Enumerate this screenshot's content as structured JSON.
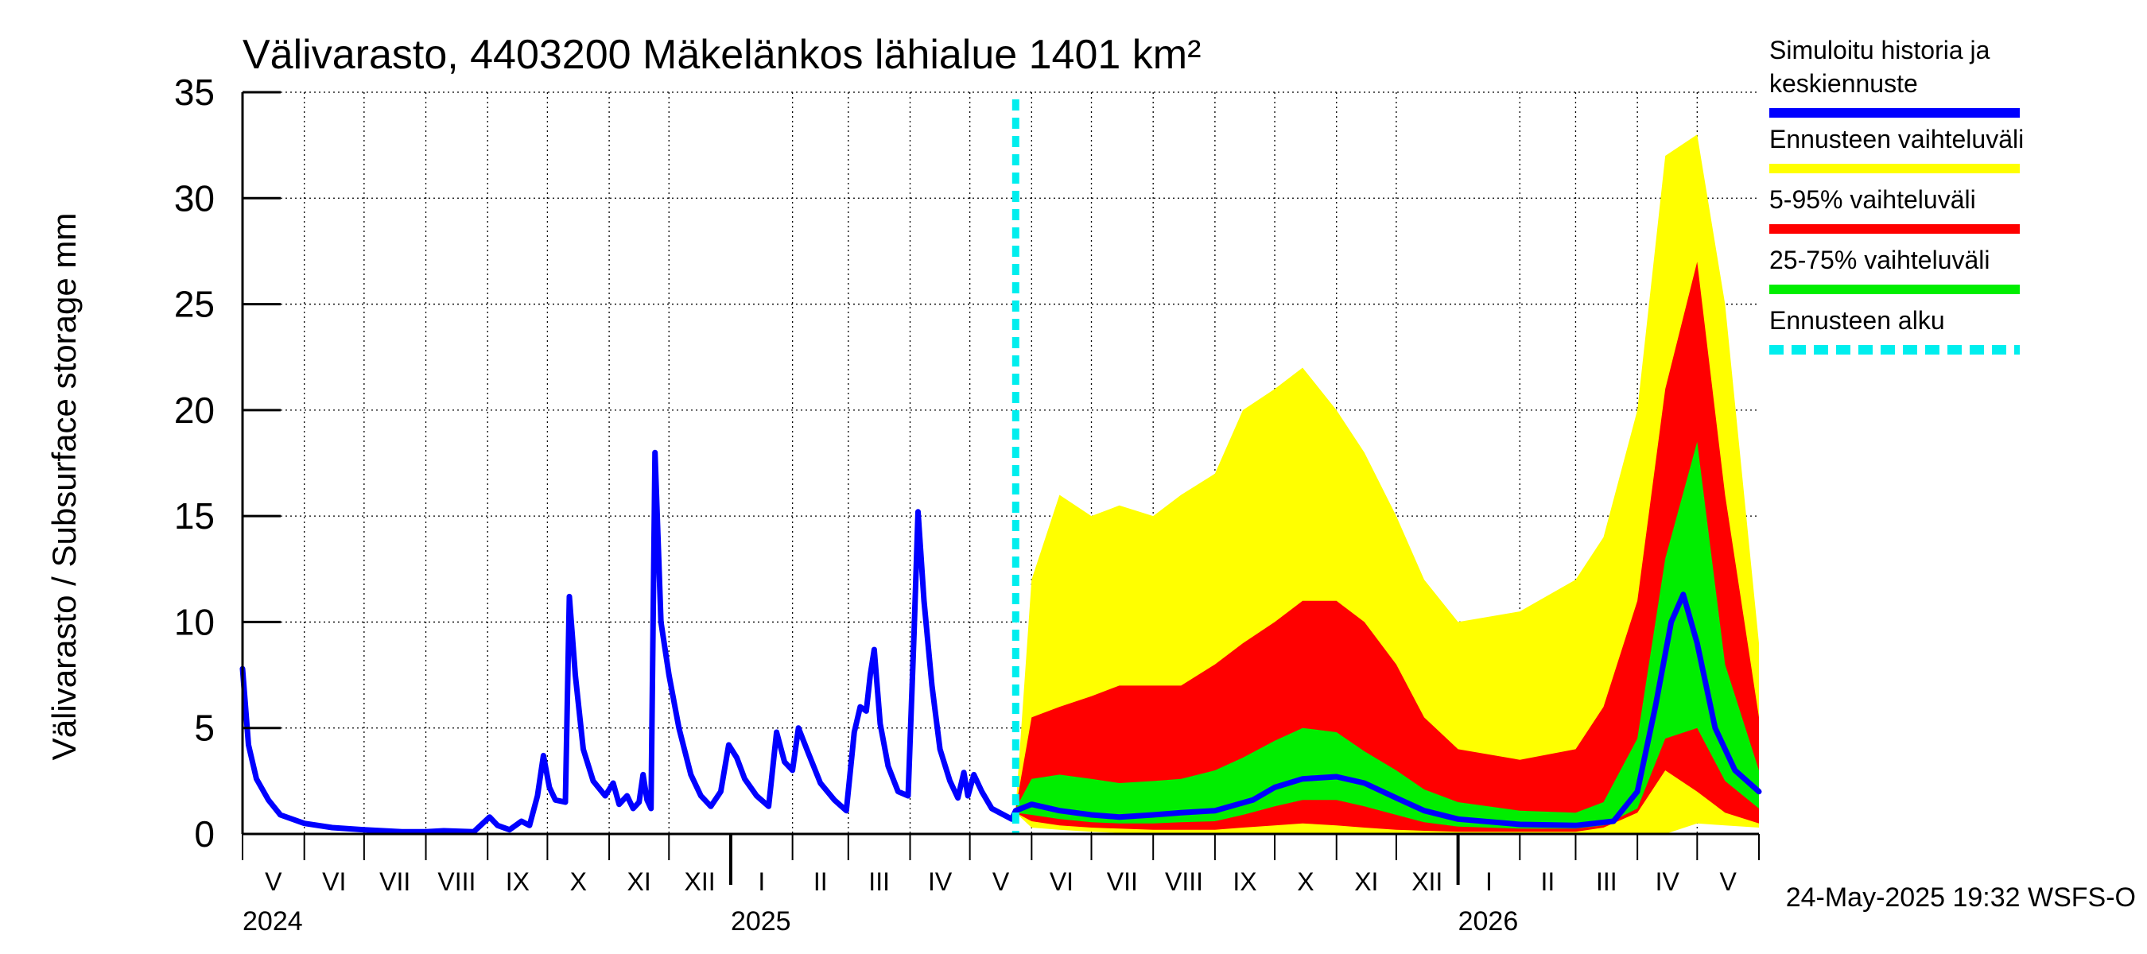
{
  "chart_data": {
    "type": "area",
    "title": "Välivarasto, 4403200 Mäkelänkos lähialue 1401 km²",
    "ylabel": "Välivarasto / Subsurface storage  mm",
    "ylim": [
      0,
      35
    ],
    "yticks": [
      0,
      5,
      10,
      15,
      20,
      25,
      30,
      35
    ],
    "xlim": [
      "2024-05-01",
      "2026-06-01"
    ],
    "grid": true,
    "forecast_start": "2025-05-24",
    "month_labels": [
      {
        "label": "V",
        "start": "2024-05-01",
        "end": "2024-06-01"
      },
      {
        "label": "VI",
        "start": "2024-06-01",
        "end": "2024-07-01"
      },
      {
        "label": "VII",
        "start": "2024-07-01",
        "end": "2024-08-01"
      },
      {
        "label": "VIII",
        "start": "2024-08-01",
        "end": "2024-09-01"
      },
      {
        "label": "IX",
        "start": "2024-09-01",
        "end": "2024-10-01"
      },
      {
        "label": "X",
        "start": "2024-10-01",
        "end": "2024-11-01"
      },
      {
        "label": "XI",
        "start": "2024-11-01",
        "end": "2024-12-01"
      },
      {
        "label": "XII",
        "start": "2024-12-01",
        "end": "2025-01-01"
      },
      {
        "label": "I",
        "start": "2025-01-01",
        "end": "2025-02-01"
      },
      {
        "label": "II",
        "start": "2025-02-01",
        "end": "2025-03-01"
      },
      {
        "label": "III",
        "start": "2025-03-01",
        "end": "2025-04-01"
      },
      {
        "label": "IV",
        "start": "2025-04-01",
        "end": "2025-05-01"
      },
      {
        "label": "V",
        "start": "2025-05-01",
        "end": "2025-06-01"
      },
      {
        "label": "VI",
        "start": "2025-06-01",
        "end": "2025-07-01"
      },
      {
        "label": "VII",
        "start": "2025-07-01",
        "end": "2025-08-01"
      },
      {
        "label": "VIII",
        "start": "2025-08-01",
        "end": "2025-09-01"
      },
      {
        "label": "IX",
        "start": "2025-09-01",
        "end": "2025-10-01"
      },
      {
        "label": "X",
        "start": "2025-10-01",
        "end": "2025-11-01"
      },
      {
        "label": "XI",
        "start": "2025-11-01",
        "end": "2025-12-01"
      },
      {
        "label": "XII",
        "start": "2025-12-01",
        "end": "2026-01-01"
      },
      {
        "label": "I",
        "start": "2026-01-01",
        "end": "2026-02-01"
      },
      {
        "label": "II",
        "start": "2026-02-01",
        "end": "2026-03-01"
      },
      {
        "label": "III",
        "start": "2026-03-01",
        "end": "2026-04-01"
      },
      {
        "label": "IV",
        "start": "2026-04-01",
        "end": "2026-05-01"
      },
      {
        "label": "V",
        "start": "2026-05-01",
        "end": "2026-06-01"
      }
    ],
    "year_labels": [
      {
        "label": "2024",
        "date": "2024-05-01"
      },
      {
        "label": "2025",
        "date": "2025-01-01"
      },
      {
        "label": "2026",
        "date": "2026-01-01"
      }
    ],
    "legend_position": "right",
    "legend": [
      {
        "text": [
          "Simuloitu historia ja",
          "keskiennuste"
        ],
        "color": "#0000ff",
        "style": "solid"
      },
      {
        "text": [
          "Ennusteen vaihteluväli"
        ],
        "color": "#ffff00",
        "style": "solid"
      },
      {
        "text": [
          "5-95% vaihteluväli"
        ],
        "color": "#ff0000",
        "style": "solid"
      },
      {
        "text": [
          "25-75% vaihteluväli"
        ],
        "color": "#00ee00",
        "style": "solid"
      },
      {
        "text": [
          "Ennusteen alku"
        ],
        "color": "#00eeee",
        "style": "dashed"
      }
    ],
    "footer": "24-May-2025 19:32 WSFS-O",
    "series": [
      {
        "role": "history",
        "color": "#0000ff",
        "points": [
          [
            "2024-05-01",
            7.8
          ],
          [
            "2024-05-04",
            4.2
          ],
          [
            "2024-05-08",
            2.6
          ],
          [
            "2024-05-14",
            1.6
          ],
          [
            "2024-05-20",
            0.9
          ],
          [
            "2024-06-01",
            0.5
          ],
          [
            "2024-06-15",
            0.3
          ],
          [
            "2024-07-01",
            0.2
          ],
          [
            "2024-07-20",
            0.1
          ],
          [
            "2024-08-01",
            0.1
          ],
          [
            "2024-08-10",
            0.15
          ],
          [
            "2024-08-25",
            0.1
          ],
          [
            "2024-09-02",
            0.8
          ],
          [
            "2024-09-06",
            0.4
          ],
          [
            "2024-09-12",
            0.2
          ],
          [
            "2024-09-18",
            0.6
          ],
          [
            "2024-09-22",
            0.4
          ],
          [
            "2024-09-26",
            1.8
          ],
          [
            "2024-09-29",
            3.7
          ],
          [
            "2024-10-02",
            2.2
          ],
          [
            "2024-10-05",
            1.6
          ],
          [
            "2024-10-10",
            1.5
          ],
          [
            "2024-10-12",
            11.2
          ],
          [
            "2024-10-15",
            7.5
          ],
          [
            "2024-10-19",
            4.0
          ],
          [
            "2024-10-24",
            2.5
          ],
          [
            "2024-10-30",
            1.8
          ],
          [
            "2024-11-03",
            2.4
          ],
          [
            "2024-11-06",
            1.4
          ],
          [
            "2024-11-10",
            1.8
          ],
          [
            "2024-11-13",
            1.2
          ],
          [
            "2024-11-16",
            1.5
          ],
          [
            "2024-11-18",
            2.8
          ],
          [
            "2024-11-20",
            1.6
          ],
          [
            "2024-11-22",
            1.2
          ],
          [
            "2024-11-24",
            18.0
          ],
          [
            "2024-11-27",
            10.0
          ],
          [
            "2024-12-01",
            7.5
          ],
          [
            "2024-12-06",
            5.0
          ],
          [
            "2024-12-12",
            2.8
          ],
          [
            "2024-12-17",
            1.8
          ],
          [
            "2024-12-22",
            1.3
          ],
          [
            "2024-12-27",
            2.0
          ],
          [
            "2024-12-31",
            4.2
          ],
          [
            "2025-01-04",
            3.6
          ],
          [
            "2025-01-08",
            2.6
          ],
          [
            "2025-01-14",
            1.8
          ],
          [
            "2025-01-20",
            1.3
          ],
          [
            "2025-01-24",
            4.8
          ],
          [
            "2025-01-28",
            3.4
          ],
          [
            "2025-02-01",
            3.0
          ],
          [
            "2025-02-04",
            5.0
          ],
          [
            "2025-02-09",
            3.8
          ],
          [
            "2025-02-15",
            2.4
          ],
          [
            "2025-02-22",
            1.6
          ],
          [
            "2025-02-28",
            1.1
          ],
          [
            "2025-03-04",
            4.8
          ],
          [
            "2025-03-07",
            6.0
          ],
          [
            "2025-03-10",
            5.8
          ],
          [
            "2025-03-12",
            7.5
          ],
          [
            "2025-03-14",
            8.7
          ],
          [
            "2025-03-17",
            5.2
          ],
          [
            "2025-03-21",
            3.2
          ],
          [
            "2025-03-26",
            2.0
          ],
          [
            "2025-03-31",
            1.8
          ],
          [
            "2025-04-03",
            9.5
          ],
          [
            "2025-04-05",
            15.2
          ],
          [
            "2025-04-08",
            11.0
          ],
          [
            "2025-04-12",
            7.0
          ],
          [
            "2025-04-16",
            4.0
          ],
          [
            "2025-04-21",
            2.5
          ],
          [
            "2025-04-25",
            1.7
          ],
          [
            "2025-04-28",
            2.9
          ],
          [
            "2025-04-30",
            1.8
          ],
          [
            "2025-05-03",
            2.8
          ],
          [
            "2025-05-07",
            2.0
          ],
          [
            "2025-05-12",
            1.2
          ],
          [
            "2025-05-18",
            0.9
          ],
          [
            "2025-05-22",
            0.7
          ],
          [
            "2025-05-24",
            1.1
          ]
        ]
      },
      {
        "role": "forecast-mean",
        "color": "#0000ff",
        "points": [
          [
            "2025-05-24",
            1.1
          ],
          [
            "2025-06-01",
            1.4
          ],
          [
            "2025-06-15",
            1.1
          ],
          [
            "2025-07-01",
            0.9
          ],
          [
            "2025-07-15",
            0.8
          ],
          [
            "2025-08-01",
            0.9
          ],
          [
            "2025-08-15",
            1.0
          ],
          [
            "2025-09-01",
            1.1
          ],
          [
            "2025-09-20",
            1.6
          ],
          [
            "2025-10-01",
            2.2
          ],
          [
            "2025-10-15",
            2.6
          ],
          [
            "2025-11-01",
            2.7
          ],
          [
            "2025-11-15",
            2.4
          ],
          [
            "2025-12-01",
            1.7
          ],
          [
            "2025-12-15",
            1.1
          ],
          [
            "2026-01-01",
            0.7
          ],
          [
            "2026-02-01",
            0.45
          ],
          [
            "2026-03-01",
            0.4
          ],
          [
            "2026-03-20",
            0.6
          ],
          [
            "2026-04-01",
            2.0
          ],
          [
            "2026-04-10",
            6.0
          ],
          [
            "2026-04-18",
            10.0
          ],
          [
            "2026-04-24",
            11.3
          ],
          [
            "2026-05-01",
            9.0
          ],
          [
            "2026-05-10",
            5.0
          ],
          [
            "2026-05-20",
            3.0
          ],
          [
            "2026-06-01",
            2.0
          ]
        ]
      },
      {
        "role": "forecast-range",
        "name": "Ennusteen vaihteluväli",
        "color": "#ffff00",
        "points": [
          [
            "2025-05-24",
            1.0,
            1.2
          ],
          [
            "2025-06-01",
            0.3,
            12.0
          ],
          [
            "2025-06-15",
            0.2,
            16.0
          ],
          [
            "2025-07-01",
            0.1,
            15.0
          ],
          [
            "2025-07-15",
            0.05,
            15.5
          ],
          [
            "2025-08-01",
            0.05,
            15.0
          ],
          [
            "2025-08-15",
            0.0,
            16.0
          ],
          [
            "2025-09-01",
            0.0,
            17.0
          ],
          [
            "2025-09-15",
            0.0,
            20.0
          ],
          [
            "2025-10-01",
            0.0,
            21.0
          ],
          [
            "2025-10-15",
            0.0,
            22.0
          ],
          [
            "2025-11-01",
            0.0,
            20.0
          ],
          [
            "2025-11-15",
            0.0,
            18.0
          ],
          [
            "2025-12-01",
            0.0,
            15.0
          ],
          [
            "2025-12-15",
            0.0,
            12.0
          ],
          [
            "2026-01-01",
            0.0,
            10.0
          ],
          [
            "2026-02-01",
            0.0,
            10.5
          ],
          [
            "2026-03-01",
            0.0,
            12.0
          ],
          [
            "2026-03-15",
            0.0,
            14.0
          ],
          [
            "2026-04-01",
            0.0,
            20.0
          ],
          [
            "2026-04-15",
            0.0,
            32.0
          ],
          [
            "2026-05-01",
            0.5,
            33.0
          ],
          [
            "2026-05-15",
            0.4,
            25.0
          ],
          [
            "2026-06-01",
            0.3,
            9.0
          ]
        ]
      },
      {
        "role": "forecast-range",
        "name": "5-95% vaihteluväli",
        "color": "#ff0000",
        "points": [
          [
            "2025-05-24",
            1.0,
            1.2
          ],
          [
            "2025-06-01",
            0.6,
            5.5
          ],
          [
            "2025-06-15",
            0.4,
            6.0
          ],
          [
            "2025-07-01",
            0.3,
            6.5
          ],
          [
            "2025-07-15",
            0.25,
            7.0
          ],
          [
            "2025-08-01",
            0.2,
            7.0
          ],
          [
            "2025-08-15",
            0.2,
            7.0
          ],
          [
            "2025-09-01",
            0.2,
            8.0
          ],
          [
            "2025-09-15",
            0.3,
            9.0
          ],
          [
            "2025-10-01",
            0.4,
            10.0
          ],
          [
            "2025-10-15",
            0.5,
            11.0
          ],
          [
            "2025-11-01",
            0.4,
            11.0
          ],
          [
            "2025-11-15",
            0.3,
            10.0
          ],
          [
            "2025-12-01",
            0.2,
            8.0
          ],
          [
            "2025-12-15",
            0.15,
            5.5
          ],
          [
            "2026-01-01",
            0.1,
            4.0
          ],
          [
            "2026-02-01",
            0.1,
            3.5
          ],
          [
            "2026-03-01",
            0.1,
            4.0
          ],
          [
            "2026-03-15",
            0.3,
            6.0
          ],
          [
            "2026-04-01",
            1.0,
            11.0
          ],
          [
            "2026-04-15",
            3.0,
            21.0
          ],
          [
            "2026-05-01",
            2.0,
            27.0
          ],
          [
            "2026-05-15",
            1.0,
            16.0
          ],
          [
            "2026-06-01",
            0.5,
            5.5
          ]
        ]
      },
      {
        "role": "forecast-range",
        "name": "25-75% vaihteluväli",
        "color": "#00ee00",
        "points": [
          [
            "2025-05-24",
            1.0,
            1.2
          ],
          [
            "2025-06-01",
            0.9,
            2.6
          ],
          [
            "2025-06-15",
            0.7,
            2.8
          ],
          [
            "2025-07-01",
            0.55,
            2.6
          ],
          [
            "2025-07-15",
            0.5,
            2.4
          ],
          [
            "2025-08-01",
            0.5,
            2.5
          ],
          [
            "2025-08-15",
            0.55,
            2.6
          ],
          [
            "2025-09-01",
            0.6,
            3.0
          ],
          [
            "2025-09-15",
            0.9,
            3.6
          ],
          [
            "2025-10-01",
            1.3,
            4.4
          ],
          [
            "2025-10-15",
            1.6,
            5.0
          ],
          [
            "2025-11-01",
            1.6,
            4.8
          ],
          [
            "2025-11-15",
            1.3,
            3.9
          ],
          [
            "2025-12-01",
            0.9,
            3.0
          ],
          [
            "2025-12-15",
            0.55,
            2.1
          ],
          [
            "2026-01-01",
            0.35,
            1.5
          ],
          [
            "2026-02-01",
            0.25,
            1.1
          ],
          [
            "2026-03-01",
            0.25,
            1.0
          ],
          [
            "2026-03-15",
            0.4,
            1.5
          ],
          [
            "2026-04-01",
            1.2,
            4.5
          ],
          [
            "2026-04-15",
            4.5,
            13.0
          ],
          [
            "2026-05-01",
            5.0,
            18.5
          ],
          [
            "2026-05-15",
            2.5,
            8.0
          ],
          [
            "2026-06-01",
            1.2,
            3.0
          ]
        ]
      }
    ]
  }
}
